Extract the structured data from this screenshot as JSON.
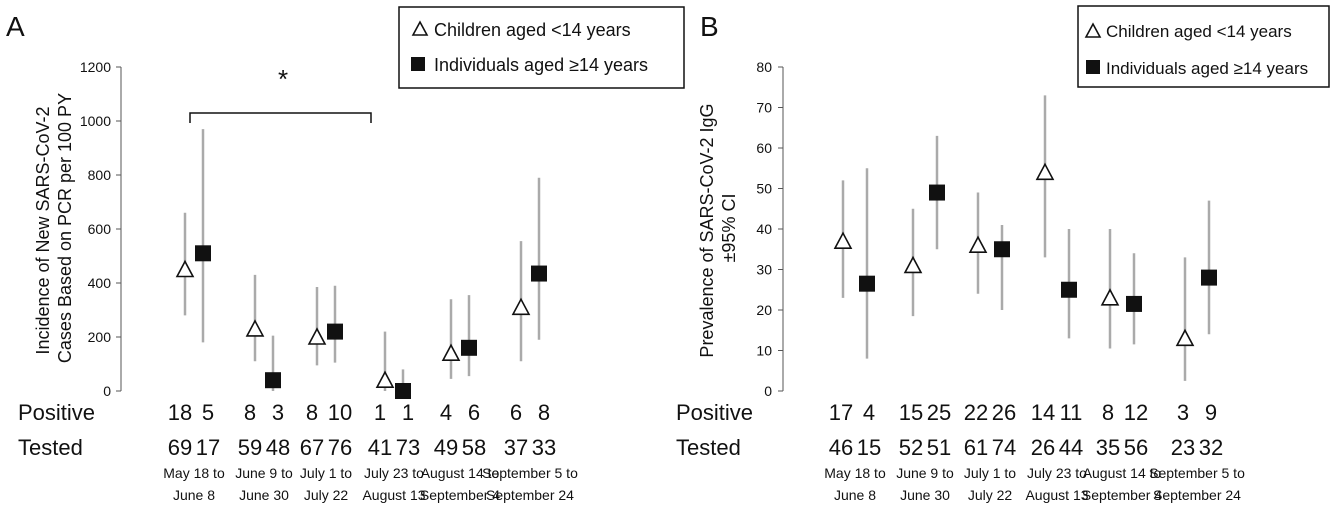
{
  "panels": [
    {
      "letter": "A",
      "ylabel_lines": [
        "Incidence of New SARS-CoV-2",
        "Cases Based on PCR per 100 PY"
      ],
      "significance_marker": "*",
      "row_labels": {
        "positive": "Positive",
        "tested": "Tested"
      },
      "legend": {
        "children": "Children aged <14 years",
        "individuals": "Individuals aged ≥14 years"
      }
    },
    {
      "letter": "B",
      "ylabel_lines": [
        "Prevalence of SARS-CoV-2 IgG",
        "±95% CI"
      ],
      "row_labels": {
        "positive": "Positive",
        "tested": "Tested"
      },
      "legend": {
        "children": "Children aged <14 years",
        "individuals": "Individuals aged ≥14 years"
      }
    }
  ],
  "chart_data": [
    {
      "type": "scatter",
      "title": "",
      "xlabel": "",
      "ylabel": "Incidence of New SARS-CoV-2 Cases Based on PCR per 100 PY",
      "ylim": [
        0,
        1200
      ],
      "yticks": [
        0,
        200,
        400,
        600,
        800,
        1000,
        1200
      ],
      "grid": false,
      "legend_position": "top-right",
      "categories": [
        [
          "May 18 to",
          "June 8"
        ],
        [
          "June 9 to",
          "June 30"
        ],
        [
          "July 1 to",
          "July 22"
        ],
        [
          "July 23 to",
          "August 13"
        ],
        [
          "August 14 to",
          "September 4"
        ],
        [
          "September 5 to",
          "September 24"
        ]
      ],
      "series": [
        {
          "name": "Children aged <14 years",
          "marker": "open-triangle",
          "values": [
            450,
            230,
            200,
            40,
            140,
            310
          ],
          "ci_low": [
            280,
            110,
            95,
            0,
            45,
            110
          ],
          "ci_high": [
            660,
            430,
            385,
            220,
            340,
            555
          ],
          "positive": [
            "18",
            "8",
            "8",
            "1",
            "4",
            "6"
          ],
          "tested": [
            "69",
            "59",
            "67",
            "41",
            "49",
            "37"
          ]
        },
        {
          "name": "Individuals aged ≥14 years",
          "marker": "filled-square",
          "values": [
            510,
            40,
            220,
            0,
            160,
            435
          ],
          "ci_low": [
            180,
            0,
            105,
            0,
            55,
            190
          ],
          "ci_high": [
            970,
            205,
            390,
            80,
            355,
            790
          ],
          "positive": [
            "5",
            "3",
            "10",
            "1",
            "6",
            "8"
          ],
          "tested": [
            "17",
            "48",
            "76",
            "73",
            "58",
            "33"
          ]
        }
      ],
      "significance": {
        "from_category": 0,
        "to_category": 2,
        "level": 1000
      }
    },
    {
      "type": "scatter",
      "title": "",
      "xlabel": "",
      "ylabel": "Prevalence of SARS-CoV-2 IgG ±95% CI",
      "ylim": [
        0,
        80
      ],
      "yticks": [
        0,
        10,
        20,
        30,
        40,
        50,
        60,
        70,
        80
      ],
      "grid": false,
      "legend_position": "top-right",
      "categories": [
        [
          "May 18 to",
          "June 8"
        ],
        [
          "June 9 to",
          "June 30"
        ],
        [
          "July 1 to",
          "July 22"
        ],
        [
          "July 23 to",
          "August 13"
        ],
        [
          "August 14 to",
          "September 4"
        ],
        [
          "September 5 to",
          "September 24"
        ]
      ],
      "series": [
        {
          "name": "Children aged <14 years",
          "marker": "open-triangle",
          "values": [
            37,
            31,
            36,
            54,
            23,
            13
          ],
          "ci_low": [
            23,
            18.5,
            24,
            33,
            10.5,
            2.5
          ],
          "ci_high": [
            52,
            45,
            49,
            73,
            40,
            33
          ],
          "positive": [
            "17",
            "15",
            "22",
            "14",
            "8",
            "3"
          ],
          "tested": [
            "46",
            "52",
            "61",
            "26",
            "35",
            "23"
          ]
        },
        {
          "name": "Individuals aged ≥14 years",
          "marker": "filled-square",
          "values": [
            26.5,
            49,
            35,
            25,
            21.5,
            28
          ],
          "ci_low": [
            8,
            35,
            20,
            13,
            11.5,
            14
          ],
          "ci_high": [
            55,
            63,
            41,
            40,
            34,
            47
          ],
          "positive": [
            "4",
            "25",
            "26",
            "11",
            "12",
            "9"
          ],
          "tested": [
            "15",
            "51",
            "74",
            "44",
            "56",
            "32"
          ]
        }
      ]
    }
  ]
}
